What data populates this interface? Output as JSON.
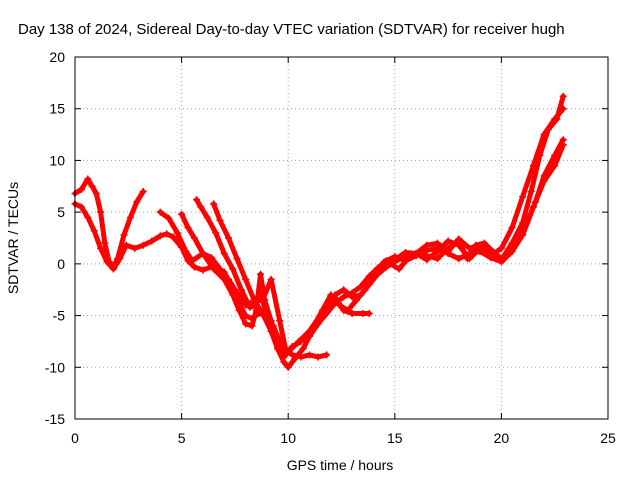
{
  "colors": {
    "series": "#ff0000",
    "axis": "#000000",
    "grid": "#a0a0a0",
    "background": "#ffffff"
  },
  "chart_data": {
    "type": "scatter",
    "title": "Day 138 of 2024, Sidereal Day-to-day VTEC variation (SDTVAR) for receiver hugh",
    "xlabel": "GPS time / hours",
    "ylabel": "SDTVAR / TECUs",
    "xlim": [
      0,
      25
    ],
    "ylim": [
      -15,
      20
    ],
    "xticks": [
      0,
      5,
      10,
      15,
      20,
      25
    ],
    "yticks": [
      -15,
      -10,
      -5,
      0,
      5,
      10,
      15,
      20
    ],
    "grid": true,
    "legend": "none",
    "marker": "plus",
    "series": [
      {
        "points": [
          [
            0.0,
            6.8
          ],
          [
            0.3,
            7.2
          ],
          [
            0.6,
            8.2
          ],
          [
            0.8,
            7.5
          ],
          [
            1.0,
            6.8
          ],
          [
            1.2,
            5.0
          ],
          [
            1.4,
            2.0
          ],
          [
            1.6,
            0.2
          ],
          [
            1.8,
            -0.3
          ],
          [
            2.0,
            0.5
          ],
          [
            2.3,
            2.8
          ],
          [
            2.6,
            4.5
          ],
          [
            2.9,
            6.0
          ],
          [
            3.2,
            7.0
          ]
        ]
      },
      {
        "points": [
          [
            0.0,
            5.8
          ],
          [
            0.3,
            5.5
          ],
          [
            0.6,
            4.5
          ],
          [
            0.9,
            3.2
          ],
          [
            1.2,
            1.5
          ],
          [
            1.5,
            0.2
          ],
          [
            1.8,
            -0.5
          ],
          [
            2.1,
            0.5
          ],
          [
            2.4,
            1.8
          ],
          [
            2.8,
            1.5
          ],
          [
            3.2,
            1.8
          ],
          [
            3.6,
            2.2
          ],
          [
            4.0,
            2.7
          ],
          [
            4.3,
            2.9
          ],
          [
            4.6,
            2.6
          ],
          [
            5.0,
            1.6
          ],
          [
            5.3,
            0.3
          ],
          [
            5.6,
            -0.3
          ],
          [
            6.0,
            -0.6
          ],
          [
            6.5,
            -0.2
          ],
          [
            7.0,
            -0.8
          ],
          [
            7.3,
            -2.0
          ],
          [
            7.6,
            -3.5
          ],
          [
            8.0,
            -5.0
          ],
          [
            8.3,
            -5.3
          ],
          [
            8.6,
            -4.8
          ],
          [
            9.0,
            -5.0
          ],
          [
            9.2,
            -6.5
          ],
          [
            9.5,
            -8.2
          ],
          [
            9.8,
            -9.5
          ],
          [
            10.0,
            -10.0
          ],
          [
            10.3,
            -9.2
          ],
          [
            10.7,
            -8.2
          ],
          [
            11.0,
            -7.0
          ],
          [
            11.4,
            -5.8
          ],
          [
            11.8,
            -4.8
          ],
          [
            12.2,
            -3.8
          ],
          [
            12.6,
            -3.2
          ],
          [
            13.0,
            -2.8
          ],
          [
            13.4,
            -2.2
          ],
          [
            13.8,
            -1.2
          ],
          [
            14.2,
            -0.4
          ],
          [
            14.6,
            0.3
          ],
          [
            15.0,
            0.7
          ],
          [
            15.5,
            0.3
          ],
          [
            16.0,
            0.8
          ],
          [
            16.5,
            1.3
          ],
          [
            17.0,
            1.5
          ],
          [
            17.5,
            1.0
          ],
          [
            18.0,
            0.5
          ],
          [
            18.5,
            1.0
          ],
          [
            19.0,
            1.2
          ],
          [
            19.5,
            0.6
          ],
          [
            20.0,
            0.2
          ],
          [
            20.5,
            1.2
          ],
          [
            21.0,
            2.8
          ],
          [
            21.5,
            5.5
          ],
          [
            22.0,
            8.0
          ],
          [
            22.5,
            9.5
          ],
          [
            22.9,
            11.5
          ]
        ]
      },
      {
        "points": [
          [
            4.0,
            5.0
          ],
          [
            4.4,
            4.4
          ],
          [
            4.8,
            3.0
          ],
          [
            5.2,
            1.2
          ],
          [
            5.5,
            0.3
          ],
          [
            6.0,
            1.0
          ],
          [
            6.5,
            -0.5
          ],
          [
            7.0,
            -1.5
          ],
          [
            7.4,
            -3.0
          ],
          [
            7.7,
            -4.5
          ],
          [
            8.0,
            -5.8
          ],
          [
            8.3,
            -6.0
          ],
          [
            8.5,
            -4.5
          ],
          [
            8.7,
            -1.0
          ],
          [
            8.9,
            -3.5
          ],
          [
            9.2,
            -5.5
          ],
          [
            9.5,
            -7.5
          ],
          [
            9.8,
            -9.0
          ],
          [
            10.2,
            -8.0
          ],
          [
            10.6,
            -7.5
          ],
          [
            11.0,
            -6.5
          ],
          [
            11.4,
            -5.5
          ],
          [
            11.8,
            -4.2
          ],
          [
            12.2,
            -3.0
          ],
          [
            12.6,
            -2.5
          ],
          [
            13.0,
            -3.2
          ],
          [
            13.4,
            -3.0
          ],
          [
            13.8,
            -2.0
          ],
          [
            14.2,
            -1.0
          ],
          [
            14.6,
            -0.3
          ],
          [
            15.0,
            0.2
          ],
          [
            15.5,
            0.8
          ],
          [
            16.0,
            1.0
          ],
          [
            16.5,
            0.4
          ],
          [
            17.0,
            1.2
          ],
          [
            17.5,
            2.2
          ],
          [
            18.0,
            1.8
          ],
          [
            18.5,
            0.5
          ],
          [
            19.0,
            1.5
          ],
          [
            19.5,
            0.8
          ],
          [
            20.0,
            1.5
          ],
          [
            20.5,
            3.5
          ],
          [
            21.0,
            6.5
          ],
          [
            21.5,
            9.5
          ],
          [
            22.0,
            12.5
          ],
          [
            22.5,
            14.0
          ],
          [
            22.9,
            15.0
          ]
        ]
      },
      {
        "points": [
          [
            5.0,
            4.8
          ],
          [
            5.3,
            3.5
          ],
          [
            5.6,
            2.5
          ],
          [
            6.0,
            1.0
          ],
          [
            6.4,
            0.6
          ],
          [
            6.8,
            -0.5
          ],
          [
            7.2,
            -1.5
          ],
          [
            7.6,
            -2.8
          ],
          [
            8.0,
            -4.0
          ],
          [
            8.4,
            -3.6
          ],
          [
            8.8,
            -3.5
          ],
          [
            9.2,
            -1.5
          ],
          [
            9.6,
            -5.5
          ],
          [
            9.9,
            -8.5
          ],
          [
            10.2,
            -8.8
          ],
          [
            10.6,
            -9.0
          ],
          [
            11.0,
            -8.8
          ],
          [
            11.4,
            -9.0
          ],
          [
            11.8,
            -8.8
          ]
        ]
      },
      {
        "points": [
          [
            5.7,
            6.2
          ],
          [
            5.9,
            5.5
          ],
          [
            6.2,
            4.5
          ],
          [
            6.6,
            3.0
          ],
          [
            7.0,
            1.0
          ],
          [
            7.4,
            -0.5
          ],
          [
            7.8,
            -2.5
          ],
          [
            8.2,
            -4.2
          ],
          [
            8.5,
            -4.0
          ],
          [
            8.7,
            -2.8
          ],
          [
            9.0,
            -5.0
          ],
          [
            9.3,
            -6.0
          ],
          [
            9.6,
            -7.5
          ],
          [
            10.0,
            -8.5
          ],
          [
            10.5,
            -7.5
          ],
          [
            11.0,
            -6.5
          ],
          [
            11.5,
            -5.0
          ],
          [
            12.0,
            -3.5
          ],
          [
            12.3,
            -3.5
          ],
          [
            12.6,
            -4.5
          ],
          [
            13.0,
            -4.8
          ],
          [
            13.5,
            -4.8
          ],
          [
            13.8,
            -4.8
          ]
        ]
      },
      {
        "points": [
          [
            6.5,
            5.8
          ],
          [
            6.8,
            4.2
          ],
          [
            7.2,
            2.5
          ],
          [
            7.6,
            0.5
          ],
          [
            8.0,
            -1.5
          ],
          [
            8.4,
            -3.5
          ],
          [
            8.8,
            -4.8
          ],
          [
            9.2,
            -6.5
          ],
          [
            9.5,
            -7.8
          ],
          [
            9.8,
            -8.8
          ],
          [
            10.2,
            -8.0
          ],
          [
            10.8,
            -7.2
          ],
          [
            11.2,
            -6.0
          ],
          [
            11.6,
            -4.5
          ],
          [
            12.0,
            -3.0
          ],
          [
            12.4,
            -4.0
          ],
          [
            12.8,
            -4.5
          ],
          [
            13.2,
            -3.5
          ],
          [
            13.6,
            -2.5
          ],
          [
            14.0,
            -1.2
          ],
          [
            14.4,
            -0.6
          ],
          [
            14.8,
            0.0
          ],
          [
            15.2,
            -0.5
          ],
          [
            15.6,
            0.5
          ],
          [
            16.0,
            1.0
          ],
          [
            16.5,
            0.8
          ],
          [
            17.0,
            0.5
          ],
          [
            17.5,
            1.5
          ],
          [
            18.0,
            2.2
          ],
          [
            18.4,
            0.5
          ],
          [
            18.8,
            1.8
          ],
          [
            19.2,
            2.0
          ],
          [
            19.6,
            1.2
          ],
          [
            20.0,
            0.5
          ],
          [
            20.4,
            1.0
          ],
          [
            20.8,
            2.5
          ],
          [
            21.2,
            4.0
          ],
          [
            21.6,
            6.0
          ],
          [
            22.0,
            8.5
          ],
          [
            22.5,
            10.5
          ],
          [
            22.9,
            12.0
          ]
        ]
      },
      {
        "points": [
          [
            14.0,
            -1.2
          ],
          [
            14.5,
            0.2
          ],
          [
            15.0,
            0.4
          ],
          [
            15.5,
            1.1
          ],
          [
            16.0,
            1.0
          ],
          [
            16.5,
            1.8
          ],
          [
            17.0,
            2.0
          ],
          [
            17.5,
            1.2
          ],
          [
            18.0,
            2.4
          ],
          [
            18.5,
            1.5
          ],
          [
            19.0,
            1.8
          ],
          [
            19.5,
            0.8
          ],
          [
            20.0,
            0.4
          ],
          [
            20.5,
            2.0
          ],
          [
            21.0,
            4.0
          ],
          [
            21.4,
            7.0
          ],
          [
            21.8,
            10.5
          ],
          [
            22.2,
            13.0
          ],
          [
            22.6,
            14.0
          ],
          [
            22.9,
            16.2
          ]
        ]
      }
    ]
  }
}
